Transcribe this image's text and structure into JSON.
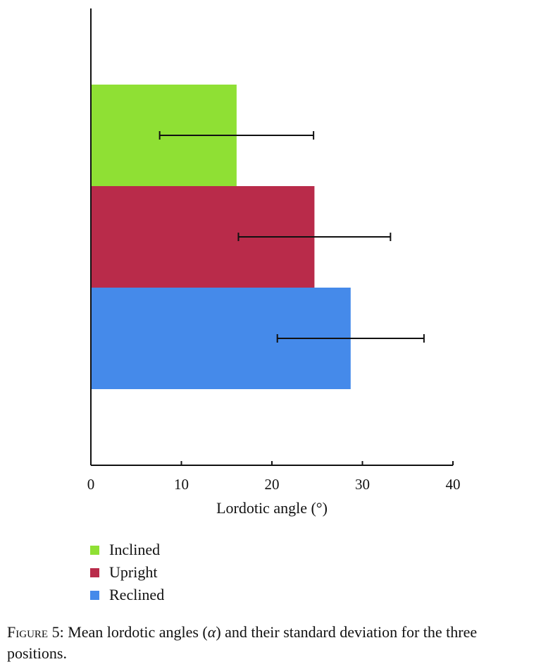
{
  "chart_data": {
    "type": "bar",
    "orientation": "horizontal",
    "xlabel": "Lordotic angle (°)",
    "ylabel": "",
    "xlim": [
      0,
      40
    ],
    "xticks": [
      0,
      10,
      20,
      30,
      40
    ],
    "grid": false,
    "legend_placement": "bottom-left",
    "series": [
      {
        "name": "Inclined",
        "value": 16.1,
        "sd": 8.5,
        "color": "#8fe034"
      },
      {
        "name": "Upright",
        "value": 24.7,
        "sd": 8.4,
        "color": "#b92b4a"
      },
      {
        "name": "Reclined",
        "value": 28.7,
        "sd": 8.1,
        "color": "#458aea"
      }
    ]
  },
  "legend": {
    "items": [
      {
        "label": "Inclined",
        "color": "#8fe034"
      },
      {
        "label": "Upright",
        "color": "#b92b4a"
      },
      {
        "label": "Reclined",
        "color": "#458aea"
      }
    ]
  },
  "caption": {
    "label": "Figure 5:",
    "text_before": " Mean lordotic angles (",
    "symbol": "α",
    "text_after": ") and their standard deviation for the three positions."
  }
}
